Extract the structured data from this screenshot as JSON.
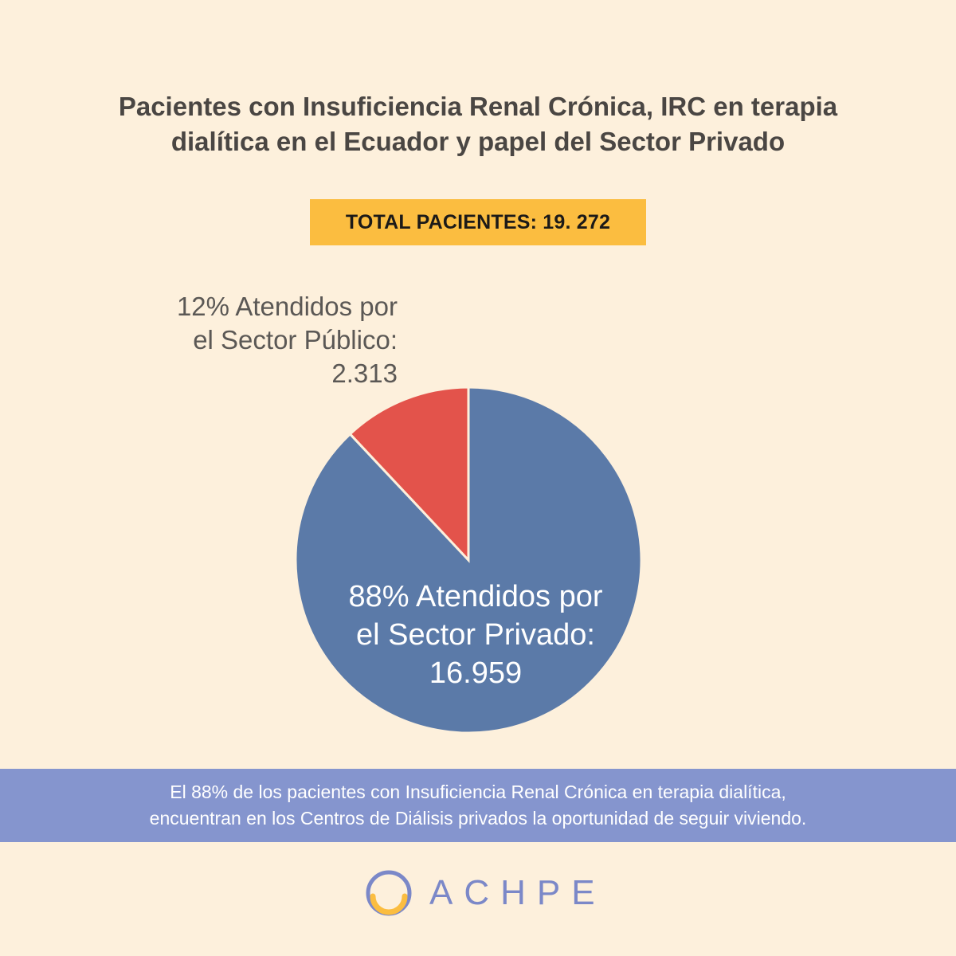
{
  "title": {
    "line1": "Pacientes con Insuficiencia Renal Crónica, IRC en terapia",
    "line2": "dialítica en el Ecuador y papel del Sector Privado"
  },
  "total_label": "TOTAL PACIENTES: 19. 272",
  "chart_data": {
    "type": "pie",
    "title": "Pacientes con Insuficiencia Renal Crónica, IRC en terapia dialítica en el Ecuador y papel del Sector Privado",
    "slices": [
      {
        "name": "Atendidos por el Sector Privado",
        "percent": 88,
        "value": 16959,
        "color": "#5b7aa8",
        "label_lines": [
          "88% Atendidos por",
          "el Sector Privado:",
          "16.959"
        ]
      },
      {
        "name": "Atendidos por el Sector Público",
        "percent": 12,
        "value": 2313,
        "color": "#e3534b",
        "label_lines": [
          "12% Atendidos por",
          "el Sector Público:",
          "2.313"
        ]
      }
    ]
  },
  "banner": {
    "line1": "El 88% de los pacientes con Insuficiencia Renal Crónica en terapia dialítica,",
    "line2": "encuentran en los Centros de Diálisis privados la oportunidad de seguir viviendo."
  },
  "logo": {
    "text": "ACHPE",
    "icon": "achpe-ring-icon",
    "colors": {
      "ring": "#7b88c8",
      "arc": "#fbbd40"
    }
  }
}
